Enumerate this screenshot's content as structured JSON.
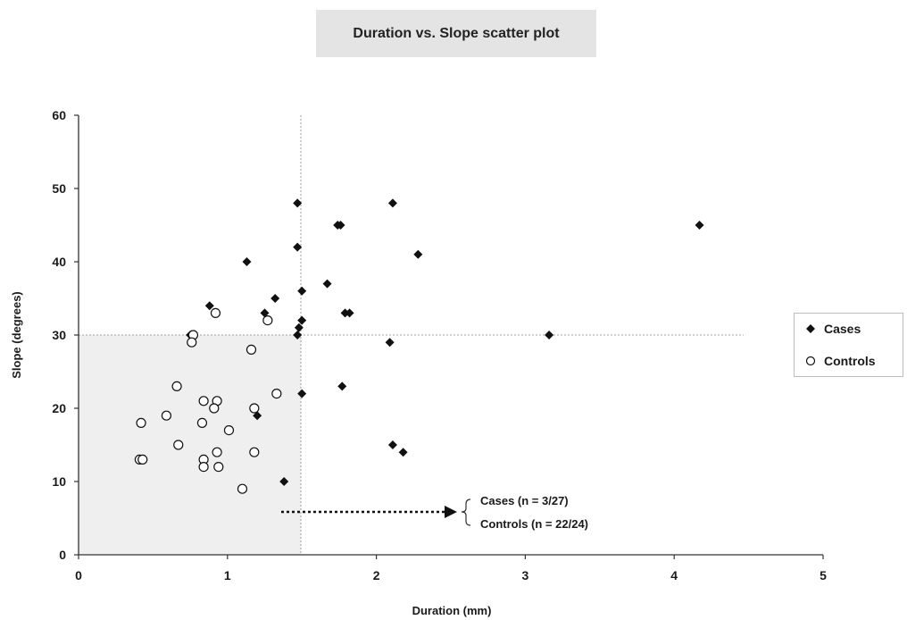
{
  "chart_data": {
    "type": "scatter",
    "title": "Duration vs. Slope scatter plot",
    "xlabel": "Duration (mm)",
    "ylabel": "Slope (degrees)",
    "xlim": [
      0,
      5
    ],
    "ylim": [
      0,
      60
    ],
    "xticks": [
      0,
      1,
      2,
      3,
      4,
      5
    ],
    "yticks": [
      0,
      10,
      20,
      30,
      40,
      50,
      60
    ],
    "grid": false,
    "legend_position": "right",
    "thresholds": {
      "x": 1.5,
      "y": 30
    },
    "series": [
      {
        "name": "Cases",
        "marker": "filled-diamond",
        "points": [
          [
            0.75,
            30
          ],
          [
            0.88,
            34
          ],
          [
            1.13,
            40
          ],
          [
            1.25,
            33
          ],
          [
            1.32,
            35
          ],
          [
            1.47,
            48
          ],
          [
            1.47,
            42
          ],
          [
            1.5,
            36
          ],
          [
            1.47,
            30
          ],
          [
            1.48,
            31
          ],
          [
            1.5,
            32
          ],
          [
            1.5,
            22
          ],
          [
            1.67,
            37
          ],
          [
            1.74,
            45
          ],
          [
            1.76,
            45
          ],
          [
            1.79,
            33
          ],
          [
            1.82,
            33
          ],
          [
            1.77,
            23
          ],
          [
            2.09,
            29
          ],
          [
            2.11,
            48
          ],
          [
            2.28,
            41
          ],
          [
            2.11,
            15
          ],
          [
            2.18,
            14
          ],
          [
            3.16,
            30
          ],
          [
            4.17,
            45
          ],
          [
            1.2,
            19
          ],
          [
            1.38,
            10
          ]
        ]
      },
      {
        "name": "Controls",
        "marker": "open-circle",
        "points": [
          [
            0.77,
            30
          ],
          [
            0.92,
            33
          ],
          [
            1.27,
            32
          ],
          [
            0.76,
            29
          ],
          [
            1.16,
            28
          ],
          [
            0.66,
            23
          ],
          [
            1.33,
            22
          ],
          [
            0.84,
            21
          ],
          [
            0.93,
            21
          ],
          [
            0.91,
            20
          ],
          [
            1.18,
            20
          ],
          [
            0.42,
            18
          ],
          [
            0.59,
            19
          ],
          [
            0.83,
            18
          ],
          [
            1.01,
            17
          ],
          [
            0.67,
            15
          ],
          [
            0.93,
            14
          ],
          [
            1.18,
            14
          ],
          [
            0.41,
            13
          ],
          [
            0.84,
            13
          ],
          [
            0.84,
            12
          ],
          [
            0.94,
            12
          ],
          [
            1.1,
            9
          ],
          [
            0.43,
            13
          ]
        ]
      }
    ],
    "annotation": {
      "cases_label": "Cases  (n = 3/27)",
      "controls_label": "Controls  (n = 22/24)"
    }
  }
}
